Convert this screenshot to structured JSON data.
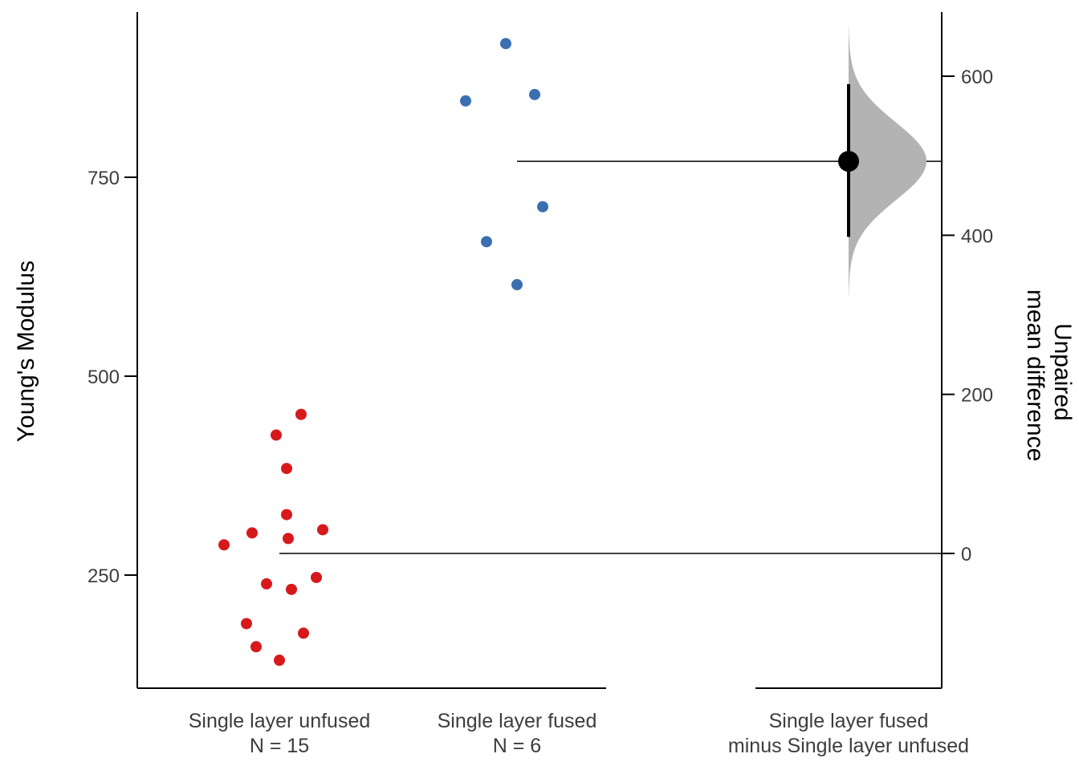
{
  "chart_data": {
    "type": "scatter",
    "subtype": "estimation-plot",
    "title": "",
    "ylabel": "Young's Modulus",
    "y2label_lines": [
      "Unpaired",
      "mean difference"
    ],
    "ylim": [
      108,
      960
    ],
    "y2lim": [
      -170,
      690
    ],
    "y_ticks": [
      250,
      500,
      750
    ],
    "y2_ticks": [
      0,
      200,
      400,
      600
    ],
    "grid": false,
    "groups": [
      {
        "label": "Single layer unfused",
        "n_label": "N = 15",
        "color": "#d7191c",
        "values": [
          452,
          426,
          384,
          326,
          303,
          288,
          296,
          307,
          247,
          239,
          232,
          189,
          177,
          160,
          143
        ]
      },
      {
        "label": "Single layer fused",
        "n_label": "N = 6",
        "color": "#3a6fb0",
        "values": [
          918,
          846,
          854,
          713,
          669,
          615
        ]
      }
    ],
    "reference_means": [
      279,
      771
    ],
    "effect_size": {
      "label_lines": [
        "Single layer fused",
        "minus Single layer unfused"
      ],
      "mean_diff": 493,
      "ci": [
        398,
        590
      ],
      "distribution_range": [
        323,
        663
      ],
      "distribution_color": "#b3b3b3"
    }
  }
}
